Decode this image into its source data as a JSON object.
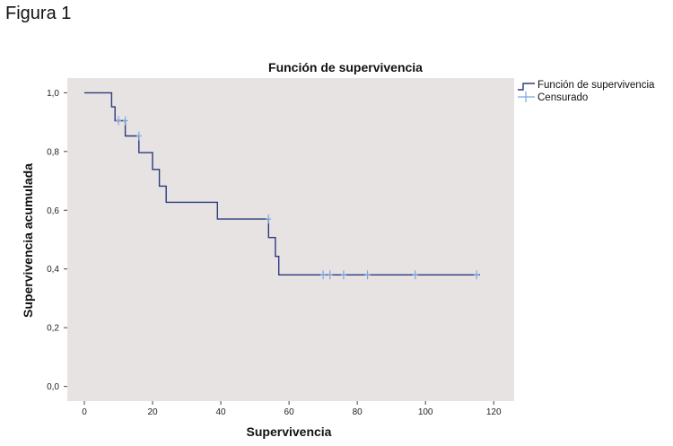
{
  "figure_label": "Figura 1",
  "chart_data": {
    "type": "line",
    "title": "Función de supervivencia",
    "xlabel": "Supervivencia",
    "ylabel": "Supervivencia acumulada",
    "xlim": [
      -5,
      126
    ],
    "ylim": [
      -0.05,
      1.05
    ],
    "x_ticks": [
      0,
      20,
      40,
      60,
      80,
      100,
      120
    ],
    "x_tick_labels": [
      "0",
      "20",
      "40",
      "60",
      "80",
      "100",
      "120"
    ],
    "y_ticks": [
      0.0,
      0.2,
      0.4,
      0.6,
      0.8,
      1.0
    ],
    "y_tick_labels": [
      "0,0",
      "0,2",
      "0,4",
      "0,6",
      "0,8",
      "1,0"
    ],
    "grid": false,
    "legend_position": "right",
    "series": [
      {
        "name": "Función de supervivencia",
        "color": "#2b3a7e",
        "style": "step",
        "points": [
          [
            0,
            1.0
          ],
          [
            8,
            1.0
          ],
          [
            8,
            0.952
          ],
          [
            9,
            0.952
          ],
          [
            9,
            0.905
          ],
          [
            12,
            0.905
          ],
          [
            12,
            0.853
          ],
          [
            16,
            0.853
          ],
          [
            16,
            0.796
          ],
          [
            20,
            0.796
          ],
          [
            20,
            0.739
          ],
          [
            22,
            0.739
          ],
          [
            22,
            0.682
          ],
          [
            24,
            0.682
          ],
          [
            24,
            0.627
          ],
          [
            39,
            0.627
          ],
          [
            39,
            0.57
          ],
          [
            54,
            0.57
          ],
          [
            54,
            0.507
          ],
          [
            56,
            0.507
          ],
          [
            56,
            0.443
          ],
          [
            57,
            0.443
          ],
          [
            57,
            0.38
          ],
          [
            116,
            0.38
          ]
        ]
      },
      {
        "name": "Censurado",
        "color": "#7ba7e0",
        "style": "markers",
        "marker": "plus",
        "points": [
          [
            10,
            0.905
          ],
          [
            12,
            0.905
          ],
          [
            16,
            0.853
          ],
          [
            54,
            0.57
          ],
          [
            70,
            0.38
          ],
          [
            72,
            0.38
          ],
          [
            76,
            0.38
          ],
          [
            83,
            0.38
          ],
          [
            97,
            0.38
          ],
          [
            115,
            0.38
          ]
        ]
      }
    ]
  }
}
